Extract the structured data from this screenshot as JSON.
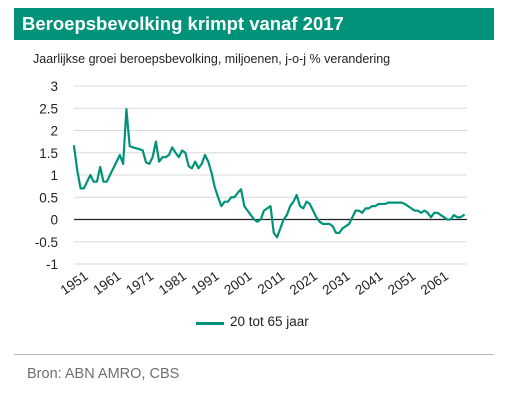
{
  "header": {
    "title": "Beroepsbevolking krimpt vanaf 2017"
  },
  "footer": {
    "source": "Bron: ABN AMRO, CBS"
  },
  "colors": {
    "brand": "#00937a",
    "series": "#00937a",
    "grid": "#d9d9d9",
    "zero_line": "#222222"
  },
  "chart_data": {
    "type": "line",
    "title": "Beroepsbevolking krimpt vanaf 2017",
    "subtitle": "Jaarlijkse groei beroepsbevolking, miljoenen, j-o-j % verandering",
    "xlabel": "",
    "ylabel": "",
    "ylim": [
      -1,
      3
    ],
    "xlim": [
      1951,
      2071
    ],
    "yticks": [
      "3",
      "2.5",
      "2",
      "1.5",
      "1",
      "0.5",
      "0",
      "-0.5",
      "-1"
    ],
    "ytick_values": [
      3,
      2.5,
      2,
      1.5,
      1,
      0.5,
      0,
      -0.5,
      -1
    ],
    "xticks": [
      "1951",
      "1961",
      "1971",
      "1981",
      "1991",
      "2001",
      "2011",
      "2021",
      "2031",
      "2041",
      "2051",
      "2061"
    ],
    "xtick_values": [
      1951,
      1961,
      1971,
      1981,
      1991,
      2001,
      2011,
      2021,
      2031,
      2041,
      2051,
      2061
    ],
    "grid": true,
    "legend_position": "bottom",
    "series": [
      {
        "name": "20 tot 65 jaar",
        "x": [
          1951,
          1952,
          1953,
          1954,
          1955,
          1956,
          1957,
          1958,
          1959,
          1960,
          1961,
          1962,
          1963,
          1964,
          1965,
          1966,
          1967,
          1968,
          1969,
          1970,
          1971,
          1972,
          1973,
          1974,
          1975,
          1976,
          1977,
          1978,
          1979,
          1980,
          1981,
          1982,
          1983,
          1984,
          1985,
          1986,
          1987,
          1988,
          1989,
          1990,
          1991,
          1992,
          1993,
          1994,
          1995,
          1996,
          1997,
          1998,
          1999,
          2000,
          2001,
          2002,
          2003,
          2004,
          2005,
          2006,
          2007,
          2008,
          2009,
          2010,
          2011,
          2012,
          2013,
          2014,
          2015,
          2016,
          2017,
          2018,
          2019,
          2020,
          2021,
          2022,
          2023,
          2024,
          2025,
          2026,
          2027,
          2028,
          2029,
          2030,
          2031,
          2032,
          2033,
          2034,
          2035,
          2036,
          2037,
          2038,
          2039,
          2040,
          2041,
          2042,
          2043,
          2044,
          2045,
          2046,
          2047,
          2048,
          2049,
          2050,
          2051,
          2052,
          2053,
          2054,
          2055,
          2056,
          2057,
          2058,
          2059,
          2060,
          2061,
          2062,
          2063,
          2064,
          2065,
          2066,
          2067,
          2068,
          2069,
          2070
        ],
        "values": [
          1.65,
          1.1,
          0.7,
          0.7,
          0.85,
          1.0,
          0.85,
          0.85,
          1.18,
          0.85,
          0.85,
          1.0,
          1.15,
          1.3,
          1.45,
          1.25,
          2.48,
          1.65,
          1.62,
          1.6,
          1.58,
          1.55,
          1.28,
          1.25,
          1.4,
          1.75,
          1.3,
          1.4,
          1.4,
          1.45,
          1.62,
          1.5,
          1.4,
          1.55,
          1.5,
          1.2,
          1.15,
          1.3,
          1.15,
          1.25,
          1.45,
          1.3,
          1.05,
          0.72,
          0.5,
          0.3,
          0.4,
          0.4,
          0.5,
          0.5,
          0.6,
          0.68,
          0.3,
          0.2,
          0.1,
          0.0,
          -0.05,
          0.0,
          0.2,
          0.25,
          0.3,
          -0.3,
          -0.4,
          -0.2,
          0.0,
          0.1,
          0.3,
          0.4,
          0.55,
          0.3,
          0.25,
          0.4,
          0.35,
          0.2,
          0.05,
          -0.05,
          -0.1,
          -0.1,
          -0.1,
          -0.15,
          -0.3,
          -0.3,
          -0.2,
          -0.15,
          -0.1,
          0.05,
          0.2,
          0.2,
          0.15,
          0.25,
          0.25,
          0.3,
          0.3,
          0.35,
          0.35,
          0.35,
          0.38,
          0.38,
          0.38,
          0.38,
          0.38,
          0.35,
          0.3,
          0.25,
          0.2,
          0.2,
          0.15,
          0.2,
          0.15,
          0.05,
          0.15,
          0.15,
          0.1,
          0.05,
          0.0,
          0.0,
          0.1,
          0.05,
          0.05,
          0.1
        ]
      }
    ]
  }
}
